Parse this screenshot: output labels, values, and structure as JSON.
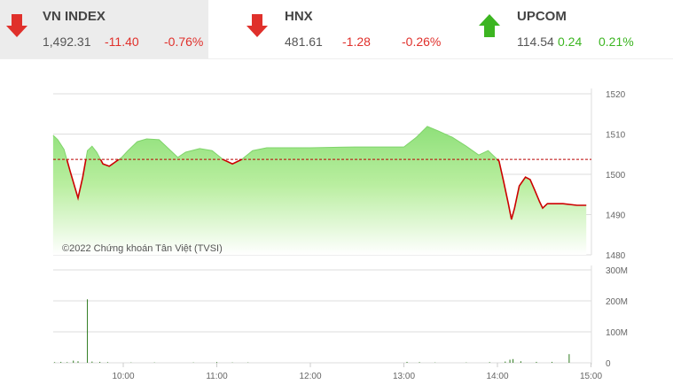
{
  "tickers": [
    {
      "name": "VN INDEX",
      "value": "1,492.31",
      "change": "-11.40",
      "percent": "-0.76%",
      "direction": "down"
    },
    {
      "name": "HNX",
      "value": "481.61",
      "change": "-1.28",
      "percent": "-0.26%",
      "direction": "down"
    },
    {
      "name": "UPCOM",
      "value": "114.54",
      "change": "0.24",
      "percent": "0.21%",
      "direction": "up"
    }
  ],
  "colors": {
    "up": "#3cb521",
    "down": "#e0302b",
    "fill": "#8fe07a",
    "line": "#cc0000"
  },
  "chart_data": [
    {
      "type": "area",
      "title": "",
      "watermark": "©2022 Chứng khoán Tân Việt (TVSI)",
      "reference": 1503.71,
      "ylim": [
        1480,
        1520
      ],
      "yticks": [
        "1520",
        "1510",
        "1500",
        "1490",
        "1480"
      ],
      "x": [
        "09:15",
        "09:18",
        "09:22",
        "09:26",
        "09:31",
        "09:34",
        "09:37",
        "09:40",
        "09:43",
        "09:47",
        "09:51",
        "09:55",
        "09:59",
        "10:03",
        "10:09",
        "10:15",
        "10:23",
        "10:29",
        "10:35",
        "10:40",
        "10:49",
        "10:57",
        "11:04",
        "11:10",
        "11:16",
        "11:23",
        "11:32",
        "12:00",
        "12:28",
        "13:00",
        "13:08",
        "13:15",
        "13:22",
        "13:31",
        "13:40",
        "13:48",
        "13:54",
        "13:57",
        "14:01",
        "14:04",
        "14:07",
        "14:09",
        "14:11",
        "14:14",
        "14:18",
        "14:21",
        "14:24",
        "14:27",
        "14:29",
        "14:32",
        "14:42",
        "14:51",
        "14:57"
      ],
      "y": [
        1509.7,
        1508.6,
        1506.2,
        1500.7,
        1494.1,
        1499.3,
        1505.9,
        1507.0,
        1505.5,
        1502.6,
        1502.0,
        1503.1,
        1504.2,
        1505.9,
        1508.1,
        1508.8,
        1508.6,
        1506.4,
        1504.2,
        1505.5,
        1506.4,
        1505.9,
        1503.7,
        1502.6,
        1503.7,
        1505.9,
        1506.6,
        1506.6,
        1506.8,
        1506.8,
        1509.2,
        1511.9,
        1510.8,
        1509.2,
        1507.0,
        1504.8,
        1505.9,
        1504.8,
        1503.3,
        1498.2,
        1492.7,
        1488.8,
        1491.6,
        1497.1,
        1499.3,
        1498.7,
        1496.0,
        1493.2,
        1491.6,
        1492.7,
        1492.7,
        1492.3,
        1492.3
      ]
    },
    {
      "type": "bar",
      "ylim": [
        0,
        300
      ],
      "yticks": [
        "300M",
        "200M",
        "100M",
        "0"
      ],
      "xticks": [
        "10:00",
        "11:00",
        "12:00",
        "13:00",
        "14:00",
        "15:00"
      ],
      "x": [
        "09:16",
        "09:20",
        "09:24",
        "09:28",
        "09:31",
        "09:37",
        "09:40",
        "09:45",
        "09:50",
        "10:05",
        "10:20",
        "10:45",
        "11:00",
        "11:10",
        "11:20",
        "13:02",
        "13:10",
        "13:20",
        "13:40",
        "13:55",
        "14:05",
        "14:08",
        "14:10",
        "14:15",
        "14:25",
        "14:35",
        "14:46"
      ],
      "values": [
        2,
        3,
        2,
        7,
        5,
        205,
        4,
        3,
        2,
        1,
        1,
        1,
        2,
        1,
        1,
        3,
        2,
        1,
        1,
        2,
        4,
        10,
        12,
        5,
        3,
        3,
        28
      ]
    }
  ]
}
